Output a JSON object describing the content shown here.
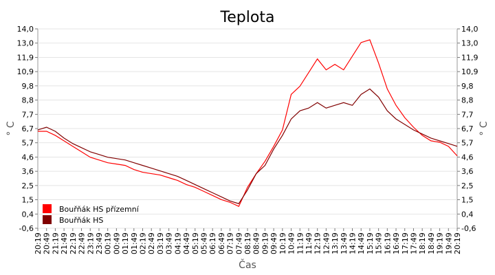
{
  "chart_data": {
    "type": "line",
    "title": "Teplota",
    "x_label": "Čas",
    "y_label": "° C",
    "categories": [
      "20:19",
      "20:49",
      "21:19",
      "21:49",
      "22:19",
      "22:49",
      "23:19",
      "23:49",
      "00:19",
      "00:49",
      "01:19",
      "01:49",
      "02:19",
      "02:49",
      "03:19",
      "03:49",
      "04:19",
      "04:49",
      "05:19",
      "05:49",
      "06:19",
      "06:49",
      "07:19",
      "07:49",
      "08:19",
      "08:49",
      "09:19",
      "09:49",
      "10:19",
      "10:49",
      "11:19",
      "11:49",
      "12:19",
      "12:49",
      "13:19",
      "13:49",
      "14:19",
      "14:49",
      "15:19",
      "15:49",
      "16:19",
      "16:49",
      "17:19",
      "17:49",
      "18:19",
      "18:49",
      "19:19",
      "19:49",
      "20:19"
    ],
    "series": [
      {
        "name": "Bouřňák HS přízemní",
        "color": "#ff0000",
        "values": [
          6.5,
          6.5,
          6.2,
          5.8,
          5.4,
          5.0,
          4.6,
          4.4,
          4.2,
          4.1,
          4.0,
          3.7,
          3.5,
          3.4,
          3.3,
          3.1,
          2.9,
          2.6,
          2.4,
          2.1,
          1.8,
          1.5,
          1.3,
          1.0,
          2.4,
          3.4,
          4.3,
          5.4,
          6.6,
          9.2,
          9.8,
          10.8,
          11.8,
          11.0,
          11.4,
          11.0,
          12.0,
          13.0,
          13.2,
          11.5,
          9.6,
          8.4,
          7.5,
          6.8,
          6.2,
          5.8,
          5.7,
          5.4,
          4.7
        ]
      },
      {
        "name": "Bouřňák HS",
        "color": "#800000",
        "values": [
          6.6,
          6.8,
          6.5,
          6.0,
          5.6,
          5.3,
          5.0,
          4.8,
          4.6,
          4.5,
          4.4,
          4.2,
          4.0,
          3.8,
          3.6,
          3.4,
          3.2,
          2.9,
          2.6,
          2.3,
          2.0,
          1.7,
          1.4,
          1.2,
          2.2,
          3.4,
          4.0,
          5.2,
          6.2,
          7.4,
          8.0,
          8.2,
          8.6,
          8.2,
          8.4,
          8.6,
          8.4,
          9.2,
          9.6,
          9.0,
          8.0,
          7.4,
          7.0,
          6.6,
          6.3,
          6.0,
          5.8,
          5.6,
          5.4
        ]
      }
    ],
    "ylim": [
      -0.6,
      14.0
    ],
    "yticks": [
      {
        "value": -0.6,
        "label": "-0,6"
      },
      {
        "value": 0.44,
        "label": "0,4"
      },
      {
        "value": 1.49,
        "label": "1,5"
      },
      {
        "value": 2.53,
        "label": "2,5"
      },
      {
        "value": 3.57,
        "label": "3,6"
      },
      {
        "value": 4.61,
        "label": "4,6"
      },
      {
        "value": 5.66,
        "label": "5,7"
      },
      {
        "value": 6.7,
        "label": "6,7"
      },
      {
        "value": 7.74,
        "label": "7,7"
      },
      {
        "value": 8.79,
        "label": "8,8"
      },
      {
        "value": 9.83,
        "label": "9,8"
      },
      {
        "value": 10.87,
        "label": "10,9"
      },
      {
        "value": 11.91,
        "label": "11,9"
      },
      {
        "value": 12.96,
        "label": "13,0"
      },
      {
        "value": 14.0,
        "label": "14,0"
      }
    ],
    "grid": true,
    "legend": "lower-left"
  }
}
